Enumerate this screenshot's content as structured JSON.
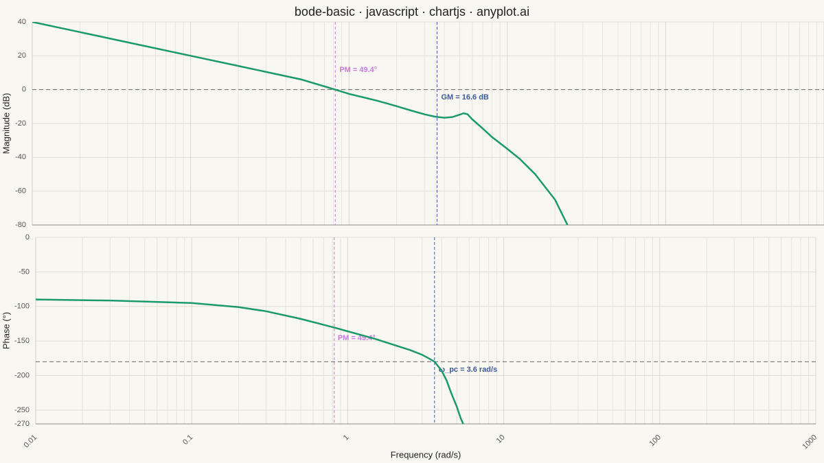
{
  "chart_data": [
    {
      "type": "line",
      "title": "bode-basic · javascript · chartjs · anyplot.ai",
      "ylabel": "Magnitude (dB)",
      "xscale": "log",
      "grid": true,
      "xlim": [
        0.01,
        1000
      ],
      "xticks": [
        0.01,
        0.1,
        1,
        10,
        100,
        1000
      ],
      "ylim": [
        -80,
        40
      ],
      "yticks": [
        -80,
        -60,
        -40,
        -20,
        0,
        20,
        40
      ],
      "x": [
        0.01,
        0.02,
        0.05,
        0.1,
        0.2,
        0.5,
        0.82,
        1,
        1.5,
        2,
        2.5,
        3,
        3.5,
        4,
        4.5,
        5,
        5.3,
        5.6,
        6,
        7,
        8,
        10,
        12,
        15,
        20,
        24
      ],
      "series": [
        {
          "name": "Magnitude",
          "color": "#1a9a6c",
          "values": [
            40,
            34,
            26,
            20,
            14,
            6,
            0,
            -2.5,
            -6.5,
            -9.8,
            -12.5,
            -14.6,
            -16,
            -16.6,
            -16.2,
            -14.8,
            -14,
            -14.5,
            -17.5,
            -23,
            -28,
            -35,
            -41,
            -50,
            -65,
            -80
          ]
        }
      ],
      "hlines": [
        {
          "y": 0,
          "color": "#666666"
        }
      ],
      "vlines": [
        {
          "x": 0.82,
          "color": "#c77be0"
        },
        {
          "x": 3.6,
          "color": "#3d5a99"
        }
      ],
      "annotations": [
        {
          "text": "PM = 49.4°",
          "color": "#c77be0"
        },
        {
          "text": "GM = 16.6 dB",
          "color": "#3d5a99"
        }
      ]
    },
    {
      "type": "line",
      "xlabel": "Frequency (rad/s)",
      "ylabel": "Phase (°)",
      "xscale": "log",
      "grid": true,
      "xlim": [
        0.01,
        1000
      ],
      "xticks": [
        0.01,
        0.1,
        1,
        10,
        100,
        1000
      ],
      "ylim": [
        -270,
        0
      ],
      "yticks": [
        -270,
        -250,
        -200,
        -150,
        -100,
        -50,
        0
      ],
      "x": [
        0.01,
        0.03,
        0.1,
        0.2,
        0.3,
        0.5,
        0.82,
        1,
        1.5,
        2,
        2.5,
        3,
        3.3,
        3.6,
        4,
        4.3,
        4.6,
        5,
        5.3,
        5.5
      ],
      "series": [
        {
          "name": "Phase",
          "color": "#1a9a6c",
          "values": [
            -90,
            -91.5,
            -95,
            -101,
            -107,
            -118,
            -130.6,
            -136,
            -147,
            -156,
            -163,
            -170,
            -175,
            -180,
            -193,
            -207,
            -225,
            -245,
            -262,
            -270
          ]
        }
      ],
      "hlines": [
        {
          "y": -180,
          "color": "#666666"
        }
      ],
      "vlines": [
        {
          "x": 0.82,
          "color": "#c77be0"
        },
        {
          "x": 3.6,
          "color": "#3d5a99"
        }
      ],
      "annotations": [
        {
          "text": "PM = 49.4°",
          "color": "#c77be0"
        },
        {
          "text": "ω_pc = 3.6 rad/s",
          "color": "#3d5a99"
        }
      ]
    }
  ]
}
